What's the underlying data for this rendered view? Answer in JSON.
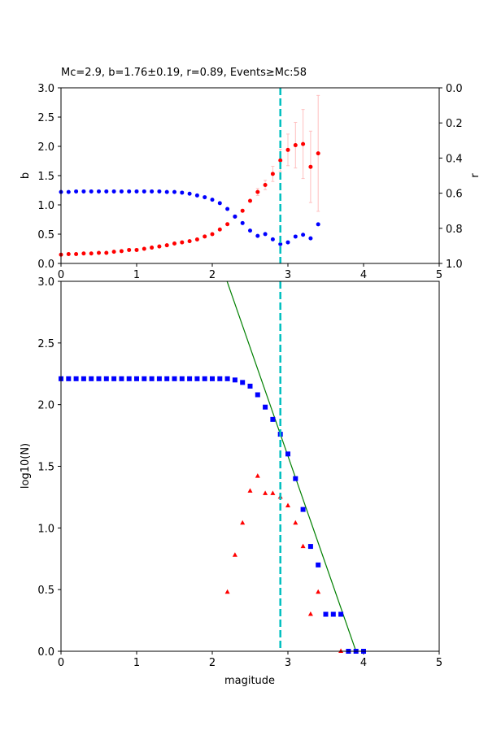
{
  "chart_data": [
    {
      "type": "scatter",
      "title": "Mc=2.9, b=1.76±0.19, r=0.89, Events≥Mc:58",
      "xlabel": "",
      "ylabel": "b",
      "ylabel_right": "r",
      "xlim": [
        0,
        5
      ],
      "ylim": [
        0,
        3
      ],
      "ylim_right": [
        1,
        0
      ],
      "right_axis_inverted": true,
      "grid": false,
      "xticks": [
        "0",
        "1",
        "2",
        "3",
        "4",
        "5"
      ],
      "yticks": [
        "0.0",
        "0.5",
        "1.0",
        "1.5",
        "2.0",
        "2.5",
        "3.0"
      ],
      "yticks_right": [
        "0.0",
        "0.2",
        "0.4",
        "0.6",
        "0.8",
        "1.0"
      ],
      "mc_line": {
        "x": 2.9,
        "color": "#00bfbf",
        "style": "dashed"
      },
      "x": [
        0.0,
        0.1,
        0.2,
        0.3,
        0.4,
        0.5,
        0.6,
        0.7,
        0.8,
        0.9,
        1.0,
        1.1,
        1.2,
        1.3,
        1.4,
        1.5,
        1.6,
        1.7,
        1.8,
        1.9,
        2.0,
        2.1,
        2.2,
        2.3,
        2.4,
        2.5,
        2.6,
        2.7,
        2.8,
        2.9,
        3.0,
        3.1,
        3.2,
        3.3,
        3.4
      ],
      "series": [
        {
          "axis": "left",
          "color": "#ff0000",
          "marker": "circle",
          "values": [
            0.15,
            0.16,
            0.16,
            0.17,
            0.17,
            0.18,
            0.18,
            0.2,
            0.21,
            0.23,
            0.23,
            0.25,
            0.27,
            0.29,
            0.31,
            0.34,
            0.36,
            0.38,
            0.41,
            0.46,
            0.5,
            0.58,
            0.67,
            0.8,
            0.9,
            1.07,
            1.22,
            1.34,
            1.53,
            1.76,
            1.94,
            2.02,
            2.04,
            1.65,
            1.88
          ],
          "errors": [
            0,
            0,
            0,
            0,
            0,
            0,
            0,
            0,
            0,
            0,
            0,
            0,
            0,
            0,
            0,
            0,
            0,
            0,
            0,
            0,
            0.01,
            0.01,
            0.01,
            0.02,
            0.03,
            0.04,
            0.06,
            0.08,
            0.13,
            0.19,
            0.27,
            0.39,
            0.59,
            0.61,
            0.99
          ],
          "error_color": "#ffc0c0"
        },
        {
          "axis": "right",
          "color": "#0000ff",
          "marker": "circle",
          "values": [
            0.593,
            0.593,
            0.59,
            0.59,
            0.59,
            0.59,
            0.59,
            0.59,
            0.59,
            0.59,
            0.59,
            0.59,
            0.59,
            0.59,
            0.593,
            0.593,
            0.597,
            0.603,
            0.613,
            0.623,
            0.637,
            0.657,
            0.69,
            0.733,
            0.77,
            0.813,
            0.843,
            0.833,
            0.863,
            0.89,
            0.88,
            0.847,
            0.837,
            0.857,
            0.777
          ]
        }
      ]
    },
    {
      "type": "scatter",
      "title": "",
      "xlabel": "magitude",
      "ylabel": "log10(N)",
      "xlim": [
        0,
        5
      ],
      "ylim": [
        0,
        3
      ],
      "grid": false,
      "xticks": [
        "0",
        "1",
        "2",
        "3",
        "4",
        "5"
      ],
      "yticks": [
        "0.0",
        "0.5",
        "1.0",
        "1.5",
        "2.0",
        "2.5",
        "3.0"
      ],
      "mc_line": {
        "x": 2.9,
        "color": "#00bfbf",
        "style": "dashed"
      },
      "fit_line": {
        "a": 6.864,
        "b": 1.76,
        "color": "#008000"
      },
      "series": [
        {
          "color": "#0000ff",
          "marker": "square",
          "x": [
            0.0,
            0.1,
            0.2,
            0.3,
            0.4,
            0.5,
            0.6,
            0.7,
            0.8,
            0.9,
            1.0,
            1.1,
            1.2,
            1.3,
            1.4,
            1.5,
            1.6,
            1.7,
            1.8,
            1.9,
            2.0,
            2.1,
            2.2,
            2.3,
            2.4,
            2.5,
            2.6,
            2.7,
            2.8,
            2.9,
            3.0,
            3.1,
            3.2,
            3.3,
            3.4,
            3.5,
            3.6,
            3.7,
            3.8,
            3.9,
            4.0
          ],
          "values": [
            2.21,
            2.21,
            2.21,
            2.21,
            2.21,
            2.21,
            2.21,
            2.21,
            2.21,
            2.21,
            2.21,
            2.21,
            2.21,
            2.21,
            2.21,
            2.21,
            2.21,
            2.21,
            2.21,
            2.21,
            2.21,
            2.21,
            2.21,
            2.2,
            2.18,
            2.15,
            2.08,
            1.98,
            1.88,
            1.76,
            1.6,
            1.4,
            1.15,
            0.85,
            0.7,
            0.3,
            0.3,
            0.3,
            0.0,
            0.0,
            0.0
          ]
        },
        {
          "color": "#ff0000",
          "marker": "triangle",
          "x": [
            2.2,
            2.3,
            2.4,
            2.5,
            2.6,
            2.7,
            2.8,
            2.9,
            3.0,
            3.1,
            3.2,
            3.3,
            3.4,
            3.7
          ],
          "values": [
            0.48,
            0.78,
            1.04,
            1.3,
            1.42,
            1.28,
            1.28,
            1.25,
            1.18,
            1.04,
            0.85,
            0.3,
            0.48,
            0.0
          ]
        }
      ]
    }
  ]
}
